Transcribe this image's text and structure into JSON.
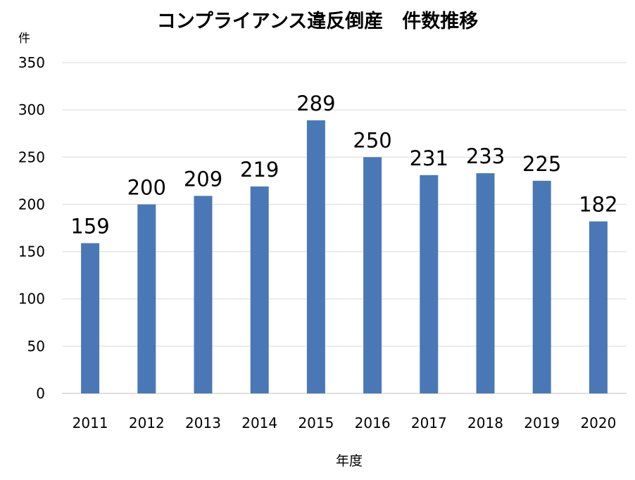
{
  "chart_data": {
    "type": "bar",
    "title": "コンプライアンス違反倒産　件数推移",
    "ylabel": "件",
    "xlabel": "年度",
    "categories": [
      "2011",
      "2012",
      "2013",
      "2014",
      "2015",
      "2016",
      "2017",
      "2018",
      "2019",
      "2020"
    ],
    "values": [
      159,
      200,
      209,
      219,
      289,
      250,
      231,
      233,
      225,
      182
    ],
    "ylim": [
      0,
      350
    ],
    "yticks": [
      0,
      50,
      100,
      150,
      200,
      250,
      300,
      350
    ],
    "grid": true,
    "legend": "none",
    "bar_color": "#4a78b6",
    "grid_color": "#d9d9d9"
  }
}
